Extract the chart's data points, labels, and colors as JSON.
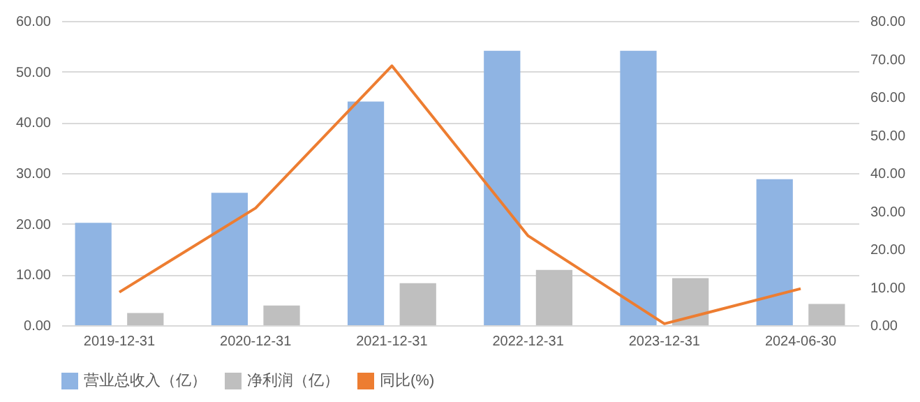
{
  "chart_data": {
    "type": "bar",
    "categories": [
      "2019-12-31",
      "2020-12-31",
      "2021-12-31",
      "2022-12-31",
      "2023-12-31",
      "2024-06-30"
    ],
    "series": [
      {
        "name": "营业总收入（亿）",
        "color": "#8fb4e3",
        "values": [
          20.2,
          26.1,
          44.1,
          54.1,
          54.1,
          28.8
        ]
      },
      {
        "name": "净利润（亿）",
        "color": "#bfbfbf",
        "values": [
          2.4,
          3.9,
          8.3,
          10.9,
          9.3,
          4.2
        ]
      },
      {
        "name": "同比(%)",
        "color": "#ed7d31",
        "type": "line",
        "axis": "y2",
        "values": [
          8.7,
          30.8,
          68.2,
          23.5,
          0.4,
          9.6
        ]
      }
    ],
    "ylim": [
      0,
      60
    ],
    "yticks": [
      {
        "value": 0,
        "label": "0.00"
      },
      {
        "value": 10,
        "label": "10.00"
      },
      {
        "value": 20,
        "label": "20.00"
      },
      {
        "value": 30,
        "label": "30.00"
      },
      {
        "value": 40,
        "label": "40.00"
      },
      {
        "value": 50,
        "label": "50.00"
      },
      {
        "value": 60,
        "label": "60.00"
      }
    ],
    "y2lim": [
      0,
      80
    ],
    "y2ticks": [
      {
        "value": 0,
        "label": "0.00"
      },
      {
        "value": 10,
        "label": "10.00"
      },
      {
        "value": 20,
        "label": "20.00"
      },
      {
        "value": 30,
        "label": "30.00"
      },
      {
        "value": 40,
        "label": "40.00"
      },
      {
        "value": 50,
        "label": "50.00"
      },
      {
        "value": 60,
        "label": "60.00"
      },
      {
        "value": 70,
        "label": "70.00"
      },
      {
        "value": 80,
        "label": "80.00"
      }
    ],
    "grid": "y",
    "legend": "bottom"
  }
}
